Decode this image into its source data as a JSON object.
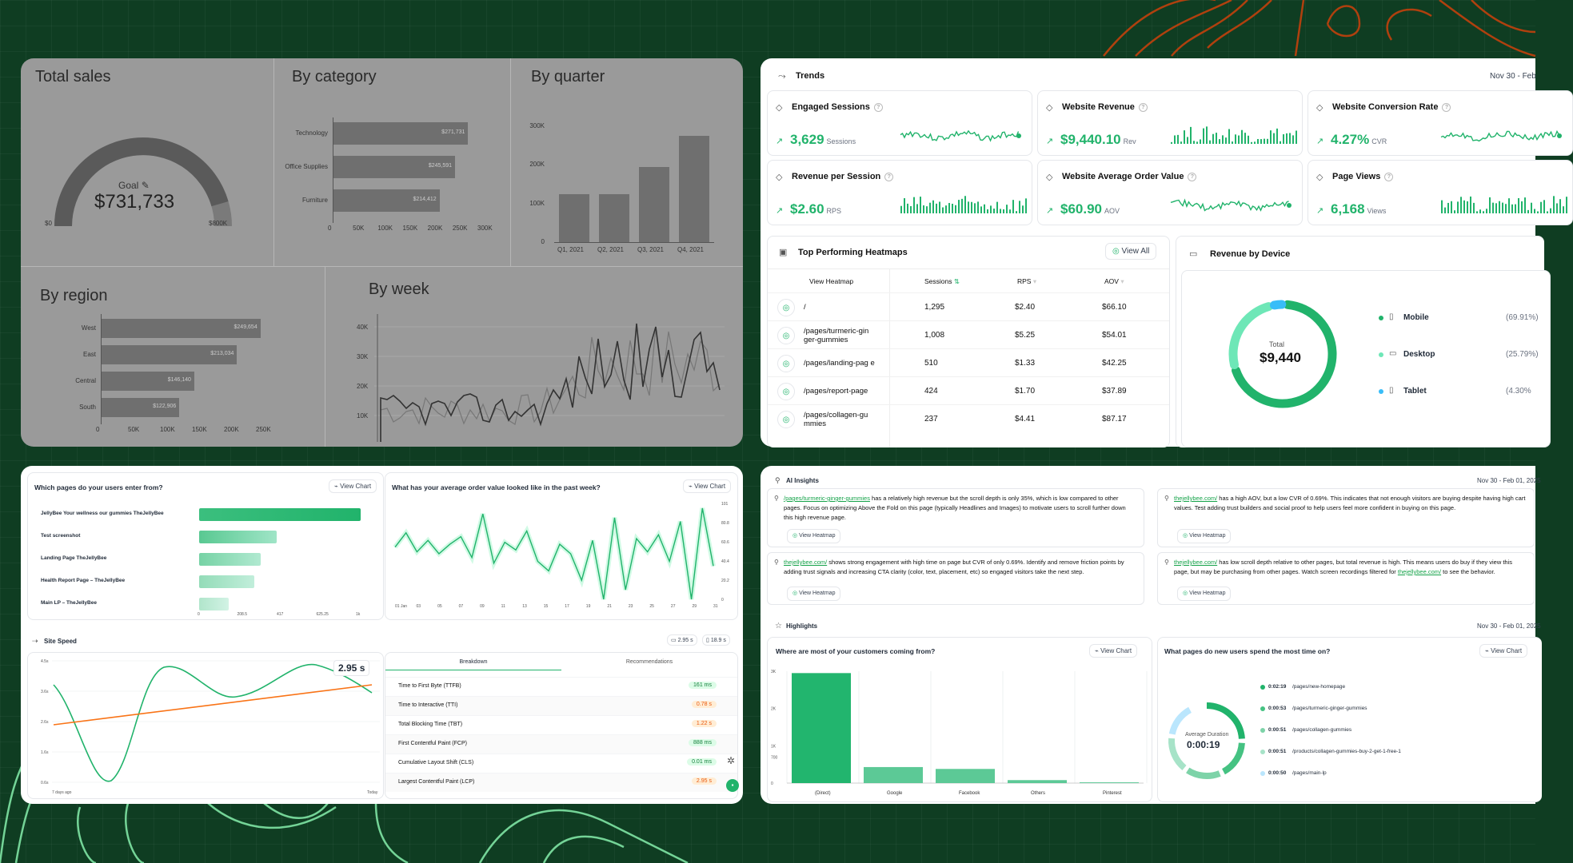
{
  "sales_dashboard": {
    "total_sales": {
      "title": "Total sales",
      "goal_label": "Goal",
      "value": "$731,733",
      "min": "$0",
      "max": "$800K",
      "fraction": 0.91
    },
    "by_category": {
      "title": "By category",
      "items": [
        {
          "name": "Technology",
          "label": "$271,731",
          "value": 271731
        },
        {
          "name": "Office Supplies",
          "label": "$245,591",
          "value": 245591
        },
        {
          "name": "Furniture",
          "label": "$214,412",
          "value": 214412
        }
      ],
      "ticks": [
        "0",
        "50K",
        "100K",
        "150K",
        "200K",
        "250K",
        "300K"
      ],
      "max": 300000
    },
    "by_quarter": {
      "title": "By quarter",
      "categories": [
        "Q1, 2021",
        "Q2, 2021",
        "Q3, 2021",
        "Q4, 2021"
      ],
      "values": [
        125000,
        125000,
        195000,
        275000
      ],
      "ticks": [
        "0",
        "100K",
        "200K",
        "300K"
      ],
      "max": 300000
    },
    "by_region": {
      "title": "By region",
      "items": [
        {
          "name": "West",
          "label": "$249,654",
          "value": 249654
        },
        {
          "name": "East",
          "label": "$213,034",
          "value": 213034
        },
        {
          "name": "Central",
          "label": "$146,140",
          "value": 146140
        },
        {
          "name": "South",
          "label": "$122,906",
          "value": 122906
        }
      ],
      "ticks": [
        "0",
        "50K",
        "100K",
        "150K",
        "200K",
        "250K"
      ],
      "max": 250000
    },
    "by_week": {
      "title": "By week",
      "ticks": [
        "10K",
        "20K",
        "30K",
        "40K"
      ]
    }
  },
  "trends": {
    "title": "Trends",
    "date": "Nov 30 - Feb",
    "tiles": [
      {
        "name": "Engaged Sessions",
        "value": "3,629",
        "unit": "Sessions",
        "spark": "line"
      },
      {
        "name": "Website Revenue",
        "value": "$9,440.10",
        "unit": "Rev",
        "spark": "bars"
      },
      {
        "name": "Website Conversion Rate",
        "value": "4.27%",
        "unit": "CVR",
        "spark": "line"
      },
      {
        "name": "Revenue per Session",
        "value": "$2.60",
        "unit": "RPS",
        "spark": "bars"
      },
      {
        "name": "Website Average Order Value",
        "value": "$60.90",
        "unit": "AOV",
        "spark": "line"
      },
      {
        "name": "Page Views",
        "value": "6,168",
        "unit": "Views",
        "spark": "bars"
      }
    ],
    "heatmaps": {
      "title": "Top Performing Heatmaps",
      "view_all": "View All",
      "columns": [
        "View Heatmap",
        "Sessions",
        "RPS",
        "AOV"
      ],
      "rows": [
        {
          "page": "/",
          "sessions": "1,295",
          "rps": "$2.40",
          "aov": "$66.10"
        },
        {
          "page": "/pages/turmeric-gin ger-gummies",
          "sessions": "1,008",
          "rps": "$5.25",
          "aov": "$54.01"
        },
        {
          "page": "/pages/landing-pag e",
          "sessions": "510",
          "rps": "$1.33",
          "aov": "$42.25"
        },
        {
          "page": "/pages/report-page",
          "sessions": "424",
          "rps": "$1.70",
          "aov": "$37.89"
        },
        {
          "page": "/pages/collagen-gu mmies",
          "sessions": "237",
          "rps": "$4.41",
          "aov": "$87.17"
        }
      ]
    },
    "device": {
      "title": "Revenue by Device",
      "total_label": "Total",
      "total": "$9,440",
      "items": [
        {
          "name": "Mobile",
          "pct": "(69.91%)",
          "value": 69.91
        },
        {
          "name": "Desktop",
          "pct": "(25.79%)",
          "value": 25.79
        },
        {
          "name": "Tablet",
          "pct": "(4.30%",
          "value": 4.3
        }
      ]
    }
  },
  "entry_pages": {
    "title": "Which pages do your users enter from?",
    "view_chart": "View Chart",
    "items": [
      {
        "name": "JellyBee Your wellness our gummies TheJellyBee",
        "value": 1000
      },
      {
        "name": "Test screenshot",
        "value": 480
      },
      {
        "name": "Landing Page TheJellyBee",
        "value": 380
      },
      {
        "name": "Health Report Page – TheJellyBee",
        "value": 340
      },
      {
        "name": "Main LP – TheJellyBee",
        "value": 185
      }
    ],
    "ticks": [
      "0",
      "208.5",
      "417",
      "625.25",
      "1k"
    ],
    "max": 1000
  },
  "aov_chart": {
    "title": "What has your average order value looked like in the past week?",
    "view_chart": "View Chart",
    "x_ticks": [
      "01 Jan",
      "03",
      "05",
      "07",
      "09",
      "11",
      "13",
      "15",
      "17",
      "19",
      "21",
      "23",
      "25",
      "27",
      "29",
      "31"
    ],
    "y_ticks": [
      "0",
      "20.2",
      "40.4",
      "60.6",
      "80.8",
      "101"
    ],
    "values": [
      55,
      70,
      50,
      62,
      48,
      58,
      66,
      44,
      90,
      38,
      60,
      52,
      72,
      40,
      30,
      58,
      48,
      20,
      62,
      0,
      86,
      10,
      64,
      50,
      68,
      40,
      82,
      0,
      96,
      35
    ]
  },
  "site_speed": {
    "title": "Site Speed",
    "value": "2.95 s",
    "badge1": "2.95 s",
    "badge2": "18.9 s",
    "y_ticks": [
      "4.5s",
      "3.6s",
      "2.6s",
      "1.6s",
      "0.6s"
    ],
    "x_start": "7 days ago",
    "x_end": "Today",
    "tabs": [
      "Breakdown",
      "Recommendations"
    ],
    "metrics": [
      {
        "name": "Time to First Byte (TTFB)",
        "value": "161 ms",
        "status": "good"
      },
      {
        "name": "Time to Interactive (TTI)",
        "value": "0.78 s",
        "status": "warn"
      },
      {
        "name": "Total Blocking Time (TBT)",
        "value": "1.22 s",
        "status": "warn"
      },
      {
        "name": "First Contentful Paint (FCP)",
        "value": "888 ms",
        "status": "good"
      },
      {
        "name": "Cumulative Layout Shift (CLS)",
        "value": "0.01 ms",
        "status": "good"
      },
      {
        "name": "Largest Contentful Paint (LCP)",
        "value": "2.95 s",
        "status": "warn"
      }
    ]
  },
  "ai_insights": {
    "title": "AI Insights",
    "date": "Nov 30 - Feb 01, 2025",
    "view_heatmap": "View Heatmap",
    "cards": [
      {
        "link": "/pages/turmeric-ginger-gummies",
        "text": " has a relatively high revenue but the scroll depth is only 35%, which is low compared to other pages. Focus on optimizing Above the Fold on this page (typically Headlines and Images) to motivate users to scroll further down this high revenue page."
      },
      {
        "link": "thejellybee.com/",
        "text": " has a high AOV, but a low CVR of 0.69%. This indicates that not enough visitors are buying despite having high cart values. Test adding trust builders and social proof to help users feel more confident in buying on this page."
      },
      {
        "link": "thejellybee.com/",
        "text": " shows strong engagement with high time on page but CVR of only 0.69%. Identify and remove friction points by adding trust signals and increasing CTA clarity (color, text, placement, etc) so engaged visitors take the next step."
      },
      {
        "link": "thejellybee.com/",
        "text": " has low scroll depth relative to other pages, but total revenue is high. This means users do buy if they view this page, but may be purchasing from other pages. Watch screen recordings filtered for ",
        "link2": "thejellybee.com/",
        "text2": " to see the behavior."
      }
    ]
  },
  "highlights": {
    "title": "Highlights",
    "date": "Nov 30 - Feb 01, 2025",
    "sources": {
      "title": "Where are most of your customers coming from?",
      "view_chart": "View Chart",
      "categories": [
        "(Direct)",
        "Google",
        "Facebook",
        "Others",
        "Pinterest"
      ],
      "values": [
        2950,
        430,
        380,
        80,
        20
      ],
      "y_ticks": [
        "0",
        "700",
        "1K",
        "2K",
        "3K"
      ],
      "max": 3000
    },
    "time_pages": {
      "title": "What pages do new users spend the most time on?",
      "view_chart": "View Chart",
      "center_label": "Average Duration",
      "center_value": "0:00:19",
      "items": [
        {
          "time": "0:02:19",
          "page": "/pages/new-homepage"
        },
        {
          "time": "0:00:53",
          "page": "/pages/turmeric-ginger-gummies"
        },
        {
          "time": "0:00:51",
          "page": "/pages/collagen-gummies"
        },
        {
          "time": "0:00:51",
          "page": "/products/collagen-gummies-buy-2-get-1-free-1"
        },
        {
          "time": "0:00:50",
          "page": "/pages/main-lp"
        }
      ]
    }
  }
}
